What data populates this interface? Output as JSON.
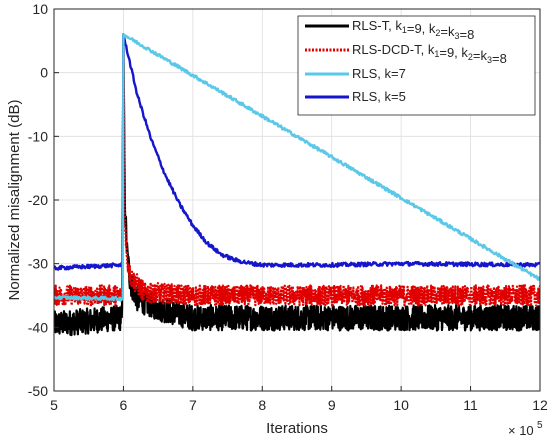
{
  "chart_data": {
    "type": "line",
    "title": "",
    "xlabel": "Iterations",
    "ylabel": "Normalized misalignment (dB)",
    "x_multiplier_label": "× 10",
    "x_multiplier_exp": "5",
    "xlim": [
      5,
      12
    ],
    "ylim": [
      -50,
      10
    ],
    "xticks": [
      5,
      6,
      7,
      8,
      9,
      10,
      11,
      12
    ],
    "yticks": [
      10,
      0,
      -10,
      -20,
      -30,
      -40,
      -50
    ],
    "grid": true,
    "legend_position": "top-right",
    "legend": [
      {
        "main": "RLS-T, k",
        "sub1": "1",
        "mid1": "=9, k",
        "sub2": "2",
        "mid2": "=k",
        "sub3": "3",
        "end": "=8"
      },
      {
        "main": "RLS-DCD-T, k",
        "sub1": "1",
        "mid1": "=9, k",
        "sub2": "2",
        "mid2": "=k",
        "sub3": "3",
        "end": "=8"
      },
      {
        "main": "RLS, k=7",
        "sub1": "",
        "mid1": "",
        "sub2": "",
        "mid2": "",
        "sub3": "",
        "end": ""
      },
      {
        "main": "RLS, k=5",
        "sub1": "",
        "mid1": "",
        "sub2": "",
        "mid2": "",
        "sub3": "",
        "end": ""
      }
    ],
    "series": [
      {
        "name": "RLS-T, k1=9, k2=k3=8",
        "color": "#000000",
        "style": "solid",
        "width": 2.2,
        "x": [
          5.0,
          5.5,
          5.98,
          6.0,
          6.02,
          6.05,
          6.1,
          6.2,
          6.5,
          7.0,
          8.0,
          9.0,
          10.0,
          11.0,
          12.0
        ],
        "y": [
          -39.5,
          -39.0,
          -38.5,
          6.0,
          -20.0,
          -28.0,
          -33.0,
          -35.5,
          -37.0,
          -38.5,
          -38.5,
          -38.5,
          -38.5,
          -38.5,
          -38.5
        ],
        "noise": 2.0
      },
      {
        "name": "RLS-DCD-T, k1=9, k2=k3=8",
        "color": "#e00000",
        "style": "dotted",
        "width": 2.2,
        "x": [
          5.0,
          5.5,
          5.98,
          6.0,
          6.02,
          6.05,
          6.1,
          6.3,
          7.0,
          8.0,
          9.0,
          10.0,
          11.0,
          12.0
        ],
        "y": [
          -35.0,
          -35.0,
          -35.0,
          6.0,
          -22.0,
          -29.0,
          -32.0,
          -34.5,
          -35.0,
          -35.0,
          -35.0,
          -35.0,
          -35.0,
          -35.0
        ],
        "noise": 1.6
      },
      {
        "name": "RLS, k=7",
        "color": "#5bc8e8",
        "style": "solid",
        "width": 2.4,
        "x": [
          5.0,
          5.99,
          6.0,
          12.0
        ],
        "y": [
          -35.3,
          -35.5,
          6.0,
          -32.5
        ],
        "noise": 0.25
      },
      {
        "name": "RLS, k=5",
        "color": "#1515cc",
        "style": "solid",
        "width": 2.4,
        "x": [
          5.0,
          5.99,
          6.0,
          6.2,
          6.4,
          6.6,
          6.8,
          7.0,
          7.2,
          7.4,
          7.6,
          7.8,
          8.0,
          9.0,
          10.0,
          11.0,
          12.0
        ],
        "y": [
          -30.7,
          -30.2,
          6.0,
          -3.5,
          -10.5,
          -16.0,
          -20.5,
          -24.0,
          -26.7,
          -28.5,
          -29.4,
          -29.9,
          -30.2,
          -30.2,
          -30.0,
          -30.1,
          -30.2
        ],
        "noise": 0.3
      }
    ]
  }
}
